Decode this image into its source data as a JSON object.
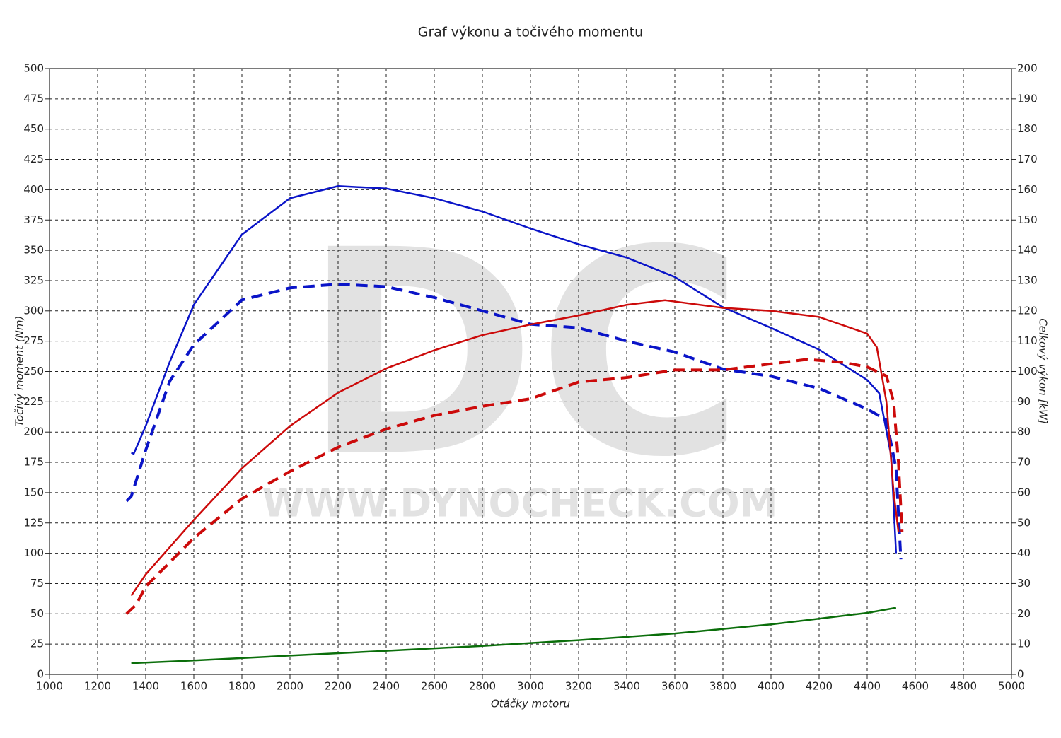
{
  "chart_data": {
    "type": "line",
    "title": "Graf výkonu a točivého momentu",
    "xlabel": "Otáčky motoru",
    "ylabel": "Točivý moment (Nm)",
    "y2label": "Celkový výkon [kW]",
    "watermark_logo": "DC",
    "watermark_url": "WWW.DYNOCHECK.COM",
    "grid": true,
    "xlim": [
      1000,
      5000
    ],
    "xticks": [
      1000,
      1200,
      1400,
      1600,
      1800,
      2000,
      2200,
      2400,
      2600,
      2800,
      3000,
      3200,
      3400,
      3600,
      3800,
      4000,
      4200,
      4400,
      4600,
      4800,
      5000
    ],
    "ylim": [
      0,
      500
    ],
    "yticks": [
      0,
      25,
      50,
      75,
      100,
      125,
      150,
      175,
      200,
      225,
      250,
      275,
      300,
      325,
      350,
      375,
      400,
      425,
      450,
      475,
      500
    ],
    "y2lim": [
      0,
      200
    ],
    "y2ticks": [
      0,
      10,
      20,
      30,
      40,
      50,
      60,
      70,
      80,
      90,
      100,
      110,
      120,
      130,
      140,
      150,
      160,
      170,
      180,
      190,
      200
    ],
    "series": [
      {
        "color": "#0a14c8",
        "dash": false,
        "axis": "y",
        "x": [
          1340,
          1350,
          1400,
          1500,
          1600,
          1800,
          2000,
          2200,
          2400,
          2600,
          2800,
          3000,
          3200,
          3400,
          3600,
          3800,
          4000,
          4200,
          4400,
          4450,
          4500,
          4520
        ],
        "values": [
          183,
          182,
          205,
          258,
          305,
          363,
          393,
          403,
          401,
          393,
          382,
          368,
          355,
          344,
          328,
          303,
          286,
          268,
          243,
          232,
          180,
          100
        ]
      },
      {
        "color": "#0a14c8",
        "dash": true,
        "axis": "y",
        "x": [
          1320,
          1340,
          1400,
          1500,
          1600,
          1800,
          2000,
          2200,
          2400,
          2600,
          2800,
          3000,
          3200,
          3400,
          3600,
          3800,
          4000,
          4200,
          4400,
          4480,
          4520,
          4540
        ],
        "values": [
          143,
          147,
          185,
          242,
          272,
          309,
          319,
          322,
          320,
          311,
          300,
          289,
          286,
          275,
          266,
          252,
          246,
          236,
          219,
          210,
          170,
          95
        ]
      },
      {
        "color": "#cc0a0a",
        "dash": false,
        "axis": "y2",
        "x": [
          1340,
          1400,
          1600,
          1800,
          2000,
          2200,
          2400,
          2600,
          2800,
          3000,
          3200,
          3400,
          3560,
          3800,
          4000,
          4200,
          4400,
          4440,
          4480,
          4510,
          4530
        ],
        "values": [
          26,
          33,
          51,
          68,
          82,
          93,
          101,
          107,
          112,
          115.5,
          118.5,
          122,
          123.5,
          121,
          120,
          118,
          112.5,
          108,
          90,
          60,
          47
        ]
      },
      {
        "color": "#cc0a0a",
        "dash": true,
        "axis": "y2",
        "x": [
          1320,
          1360,
          1400,
          1600,
          1800,
          2000,
          2200,
          2400,
          2600,
          2800,
          3000,
          3200,
          3400,
          3600,
          3800,
          4000,
          4150,
          4300,
          4400,
          4480,
          4510,
          4530,
          4545
        ],
        "values": [
          20,
          23,
          29,
          45,
          58,
          67,
          75,
          81,
          85.5,
          88.5,
          91,
          96.5,
          98,
          100.5,
          100.5,
          102.5,
          104,
          103,
          101.5,
          98.5,
          90,
          70,
          47
        ]
      },
      {
        "color": "#0a6e0a",
        "dash": false,
        "axis": "y2",
        "x": [
          1340,
          1600,
          2000,
          2400,
          2800,
          3200,
          3600,
          4000,
          4400,
          4520
        ],
        "values": [
          3.7,
          4.6,
          6.2,
          7.8,
          9.4,
          11.3,
          13.5,
          16.5,
          20.3,
          22
        ]
      }
    ]
  }
}
